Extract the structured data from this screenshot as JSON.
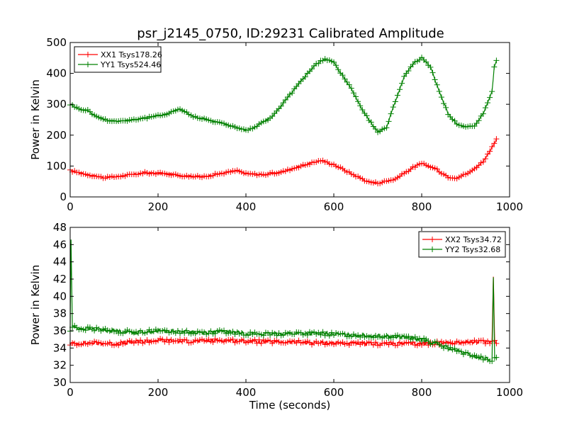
{
  "chart_data": [
    {
      "type": "line",
      "title": "psr_j2145_0750, ID:29231 Calibrated Amplitude",
      "xlabel": "",
      "ylabel": "Power in Kelvin",
      "xlim": [
        0,
        1000
      ],
      "ylim": [
        0,
        500
      ],
      "xticks": [
        "0",
        "200",
        "400",
        "600",
        "800",
        "1000"
      ],
      "yticks": [
        "0",
        "100",
        "200",
        "300",
        "400",
        "500"
      ],
      "legend": "top-left",
      "grid": false,
      "marker": "plus",
      "series": [
        {
          "name": "XX1 Tsys178.26",
          "color": "#ff0000",
          "x": [
            0,
            40,
            80,
            120,
            170,
            220,
            260,
            300,
            340,
            380,
            400,
            440,
            480,
            520,
            550,
            570,
            600,
            640,
            680,
            700,
            740,
            780,
            800,
            830,
            860,
            880,
            910,
            940,
            960,
            970
          ],
          "y": [
            85,
            72,
            62,
            68,
            78,
            75,
            68,
            65,
            75,
            85,
            75,
            72,
            80,
            98,
            110,
            118,
            105,
            75,
            48,
            45,
            58,
            95,
            108,
            92,
            65,
            62,
            80,
            115,
            160,
            185
          ]
        },
        {
          "name": "YY1 Tsys524.46",
          "color": "#008000",
          "x": [
            0,
            20,
            40,
            60,
            80,
            100,
            130,
            170,
            210,
            250,
            280,
            300,
            340,
            380,
            400,
            420,
            460,
            500,
            540,
            560,
            580,
            600,
            640,
            670,
            700,
            720,
            740,
            760,
            780,
            800,
            820,
            840,
            860,
            880,
            900,
            920,
            940,
            960,
            965,
            970
          ],
          "y": [
            300,
            285,
            280,
            260,
            250,
            245,
            248,
            255,
            265,
            285,
            260,
            255,
            240,
            225,
            215,
            225,
            260,
            330,
            400,
            430,
            448,
            435,
            350,
            270,
            210,
            225,
            310,
            390,
            430,
            452,
            420,
            340,
            270,
            235,
            225,
            230,
            270,
            340,
            420,
            440
          ]
        }
      ]
    },
    {
      "type": "line",
      "title": "",
      "xlabel": "Time (seconds)",
      "ylabel": "Power in Kelvin",
      "xlim": [
        0,
        1000
      ],
      "ylim": [
        30,
        48
      ],
      "xticks": [
        "0",
        "200",
        "400",
        "600",
        "800",
        "1000"
      ],
      "yticks": [
        "30",
        "32",
        "34",
        "36",
        "38",
        "40",
        "42",
        "44",
        "46",
        "48"
      ],
      "legend": "top-right",
      "grid": false,
      "marker": "plus",
      "series": [
        {
          "name": "XX2 Tsys34.72",
          "color": "#ff0000",
          "x": [
            0,
            50,
            100,
            150,
            200,
            250,
            300,
            350,
            400,
            450,
            500,
            550,
            600,
            650,
            700,
            750,
            800,
            850,
            900,
            950,
            960,
            963,
            966,
            970
          ],
          "y": [
            34.5,
            34.6,
            34.5,
            34.7,
            34.9,
            34.8,
            34.8,
            34.9,
            34.8,
            34.7,
            34.7,
            34.6,
            34.6,
            34.5,
            34.5,
            34.5,
            34.5,
            34.6,
            34.7,
            34.7,
            34.8,
            42.5,
            34.8,
            34.7
          ]
        },
        {
          "name": "YY2 Tsys32.68",
          "color": "#008000",
          "x": [
            0,
            2,
            5,
            20,
            50,
            100,
            150,
            200,
            250,
            300,
            350,
            400,
            450,
            500,
            550,
            600,
            650,
            700,
            750,
            800,
            830,
            860,
            890,
            920,
            950,
            960,
            963,
            966,
            970
          ],
          "y": [
            36,
            46.5,
            36.5,
            36.3,
            36.2,
            36.0,
            35.8,
            36.0,
            35.9,
            35.8,
            35.9,
            35.7,
            35.6,
            35.7,
            35.7,
            35.6,
            35.5,
            35.4,
            35.3,
            35.0,
            34.5,
            34.0,
            33.5,
            33.0,
            32.7,
            32.6,
            42.0,
            32.8,
            32.7
          ]
        }
      ]
    }
  ]
}
